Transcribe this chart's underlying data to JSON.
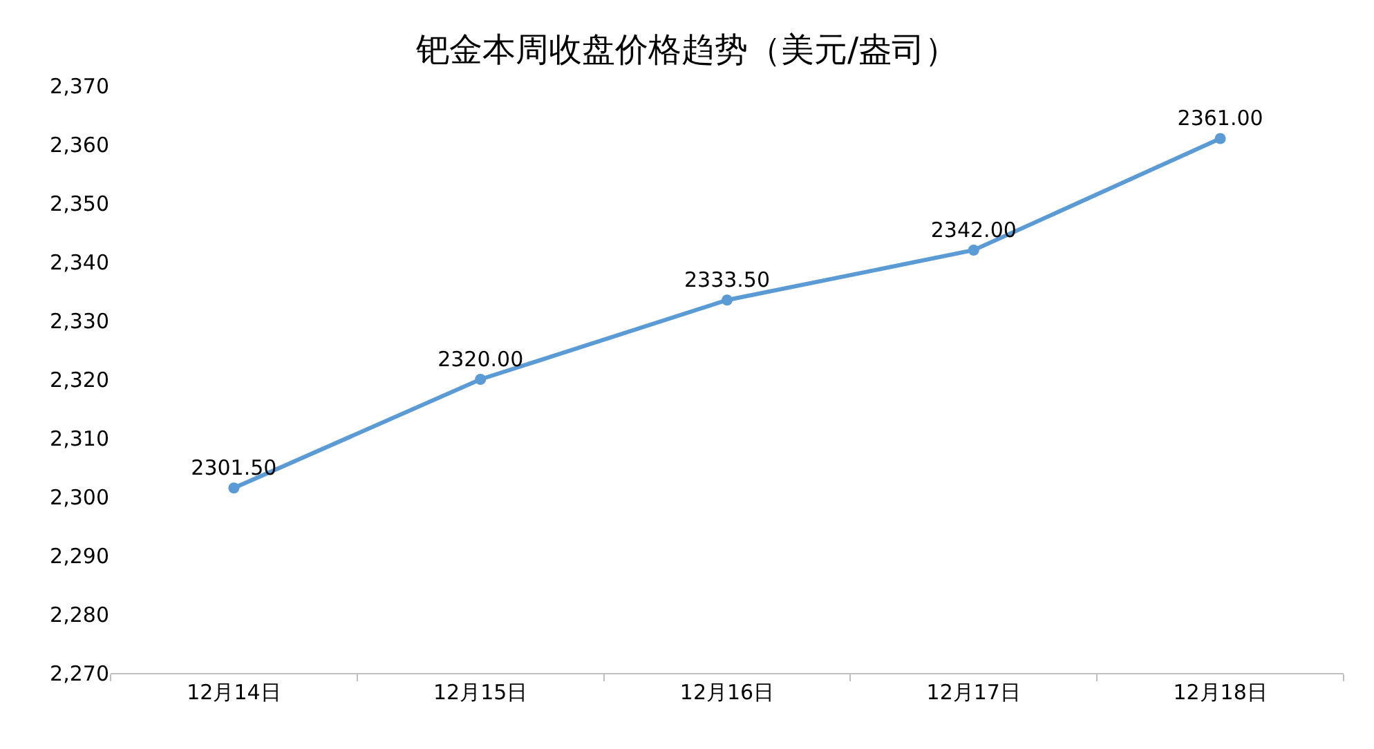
{
  "chart_data": {
    "type": "line",
    "title": "钯金本周收盘价格趋势（美元/盎司）",
    "categories": [
      "12月14日",
      "12月15日",
      "12月16日",
      "12月17日",
      "12月18日"
    ],
    "series": [
      {
        "color": "#5b9bd5",
        "values": [
          2301.5,
          2320,
          2333.5,
          2342,
          2361
        ],
        "value_labels": [
          "2301.50",
          "2320.00",
          "2333.50",
          "2342.00",
          "2361.00"
        ]
      }
    ],
    "ylim": [
      2270,
      2370
    ],
    "yticks": [
      {
        "value": 2270,
        "label": "2,270"
      },
      {
        "value": 2280,
        "label": "2,280"
      },
      {
        "value": 2290,
        "label": "2,290"
      },
      {
        "value": 2300,
        "label": "2,300"
      },
      {
        "value": 2310,
        "label": "2,310"
      },
      {
        "value": 2320,
        "label": "2,320"
      },
      {
        "value": 2330,
        "label": "2,330"
      },
      {
        "value": 2340,
        "label": "2,340"
      },
      {
        "value": 2350,
        "label": "2,350"
      },
      {
        "value": 2360,
        "label": "2,360"
      },
      {
        "value": 2370,
        "label": "2,370"
      }
    ],
    "grid": false,
    "legend": false,
    "marker": "circle",
    "line_style": "solid"
  }
}
